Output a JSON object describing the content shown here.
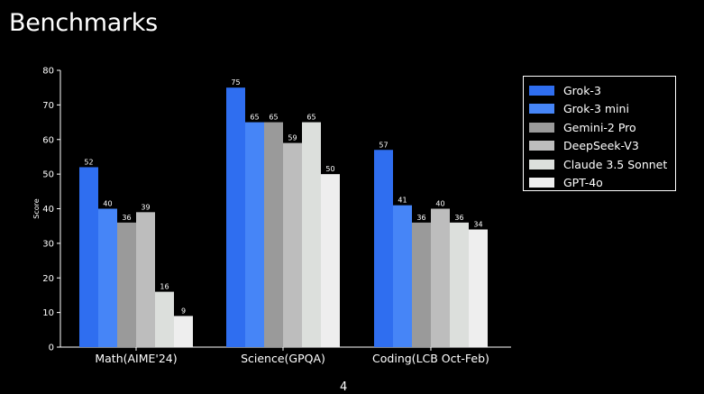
{
  "page_title": "Benchmarks",
  "chart_data": {
    "type": "bar",
    "title": "",
    "xlabel": "",
    "ylabel": "Score",
    "ylim": [
      0,
      80
    ],
    "yticks": [
      0,
      10,
      20,
      30,
      40,
      50,
      60,
      70,
      80
    ],
    "grid": false,
    "legend_position": "top-right",
    "categories": [
      "Math(AIME'24)",
      "Science(GPQA)",
      "Coding(LCB Oct-Feb)"
    ],
    "series": [
      {
        "name": "Grok-3",
        "color": "#2f6ef0",
        "values": [
          52,
          75,
          57
        ]
      },
      {
        "name": "Grok-3 mini",
        "color": "#4685f7",
        "values": [
          40,
          65,
          41
        ]
      },
      {
        "name": "Gemini-2 Pro",
        "color": "#9a9a9a",
        "values": [
          36,
          65,
          36
        ]
      },
      {
        "name": "DeepSeek-V3",
        "color": "#bdbdbd",
        "values": [
          39,
          59,
          40
        ]
      },
      {
        "name": "Claude 3.5 Sonnet",
        "color": "#dcdfdc",
        "values": [
          16,
          65,
          36
        ]
      },
      {
        "name": "GPT-4o",
        "color": "#eeeeee",
        "values": [
          9,
          50,
          34
        ]
      }
    ]
  },
  "footer_mark": "4"
}
